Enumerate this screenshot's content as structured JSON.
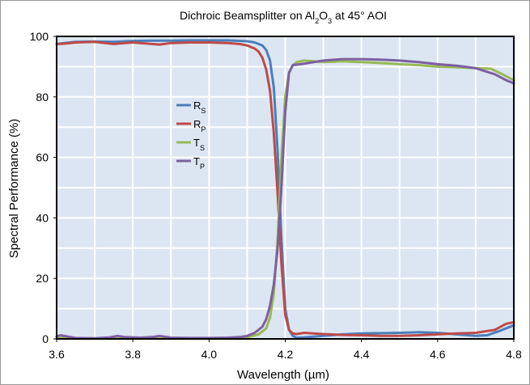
{
  "chart_data": {
    "type": "line",
    "title": {
      "parts": [
        {
          "text": "Dichroic Beamsplitter on Al",
          "sub": false
        },
        {
          "text": "2",
          "sub": true
        },
        {
          "text": "O",
          "sub": false
        },
        {
          "text": "3",
          "sub": true
        },
        {
          "text": " at 45° AOI",
          "sub": false
        }
      ]
    },
    "xlabel": "Wavelength (µm)",
    "ylabel": "Spectral Performance (%)",
    "xlim": [
      3.6,
      4.8
    ],
    "ylim": [
      0,
      100
    ],
    "x_ticks": [
      "3.6",
      "3.8",
      "4.0",
      "4.2",
      "4.4",
      "4.6",
      "4.8"
    ],
    "y_ticks": [
      "0",
      "20",
      "40",
      "60",
      "80",
      "100"
    ],
    "grid": true,
    "plot_background": "#dce6f2",
    "grid_color": "#ffffff",
    "legend_position": "upper-left-inside",
    "series": [
      {
        "name": "R",
        "sub": "S",
        "color": "#4a7ebb",
        "x": [
          3.6,
          3.62,
          3.65,
          3.7,
          3.75,
          3.8,
          3.85,
          3.9,
          3.95,
          4.0,
          4.05,
          4.1,
          4.12,
          4.14,
          4.15,
          4.16,
          4.17,
          4.18,
          4.19,
          4.2,
          4.21,
          4.22,
          4.23,
          4.25,
          4.3,
          4.35,
          4.4,
          4.45,
          4.5,
          4.55,
          4.6,
          4.65,
          4.7,
          4.73,
          4.76,
          4.8
        ],
        "y": [
          97.5,
          97.8,
          98.2,
          98.3,
          98.2,
          98.5,
          98.6,
          98.6,
          98.7,
          98.7,
          98.7,
          98.4,
          98.0,
          97.0,
          95.5,
          92.0,
          83.0,
          62.0,
          33.0,
          10.0,
          3.0,
          1.0,
          0.4,
          0.5,
          1.0,
          1.5,
          1.8,
          1.9,
          2.0,
          2.2,
          2.0,
          1.5,
          1.0,
          1.2,
          2.5,
          4.5
        ]
      },
      {
        "name": "R",
        "sub": "P",
        "color": "#be4b48",
        "x": [
          3.6,
          3.62,
          3.65,
          3.7,
          3.75,
          3.78,
          3.8,
          3.85,
          3.87,
          3.9,
          3.95,
          4.0,
          4.05,
          4.08,
          4.1,
          4.12,
          4.13,
          4.14,
          4.15,
          4.16,
          4.17,
          4.18,
          4.19,
          4.2,
          4.21,
          4.22,
          4.23,
          4.25,
          4.3,
          4.35,
          4.4,
          4.45,
          4.5,
          4.55,
          4.6,
          4.65,
          4.7,
          4.75,
          4.78,
          4.8
        ],
        "y": [
          97.5,
          97.6,
          98.0,
          98.2,
          97.5,
          97.8,
          98.0,
          97.5,
          97.3,
          97.8,
          98.0,
          98.0,
          97.8,
          97.5,
          97.0,
          96.0,
          95.0,
          93.0,
          89.0,
          82.0,
          68.0,
          48.0,
          25.0,
          8.0,
          3.0,
          1.8,
          1.6,
          2.0,
          1.6,
          1.3,
          1.2,
          1.0,
          1.0,
          1.2,
          1.5,
          1.8,
          2.0,
          3.0,
          5.0,
          5.5
        ]
      },
      {
        "name": "T",
        "sub": "S",
        "color": "#98b954",
        "x": [
          3.6,
          3.62,
          3.65,
          3.7,
          3.75,
          3.8,
          3.85,
          3.9,
          3.95,
          4.0,
          4.05,
          4.1,
          4.13,
          4.15,
          4.16,
          4.17,
          4.18,
          4.19,
          4.2,
          4.21,
          4.22,
          4.23,
          4.25,
          4.3,
          4.35,
          4.4,
          4.45,
          4.5,
          4.55,
          4.6,
          4.65,
          4.7,
          4.74,
          4.77,
          4.8
        ],
        "y": [
          0.3,
          0.3,
          0.2,
          0.2,
          0.2,
          0.2,
          0.2,
          0.2,
          0.2,
          0.2,
          0.3,
          0.6,
          1.5,
          3.5,
          7.0,
          15.0,
          33.0,
          60.0,
          80.0,
          88.0,
          90.5,
          91.5,
          92.0,
          91.5,
          91.8,
          91.5,
          91.2,
          90.8,
          90.5,
          90.0,
          89.8,
          89.5,
          89.3,
          87.5,
          85.5
        ]
      },
      {
        "name": "T",
        "sub": "P",
        "color": "#7d60a0",
        "x": [
          3.6,
          3.61,
          3.62,
          3.65,
          3.7,
          3.74,
          3.76,
          3.78,
          3.82,
          3.85,
          3.87,
          3.9,
          3.95,
          4.0,
          4.05,
          4.08,
          4.1,
          4.12,
          4.14,
          4.15,
          4.16,
          4.17,
          4.18,
          4.19,
          4.2,
          4.21,
          4.22,
          4.25,
          4.3,
          4.35,
          4.4,
          4.45,
          4.5,
          4.55,
          4.6,
          4.65,
          4.7,
          4.75,
          4.78,
          4.8
        ],
        "y": [
          0.8,
          1.2,
          1.0,
          0.3,
          0.2,
          0.5,
          1.0,
          0.6,
          0.4,
          0.6,
          1.0,
          0.4,
          0.3,
          0.3,
          0.4,
          0.6,
          1.0,
          2.0,
          4.0,
          6.5,
          11.0,
          18.0,
          30.0,
          50.0,
          75.0,
          88.0,
          90.5,
          91.0,
          92.0,
          92.5,
          92.5,
          92.3,
          92.0,
          91.5,
          90.8,
          90.3,
          89.5,
          87.5,
          85.5,
          84.5
        ]
      }
    ]
  }
}
